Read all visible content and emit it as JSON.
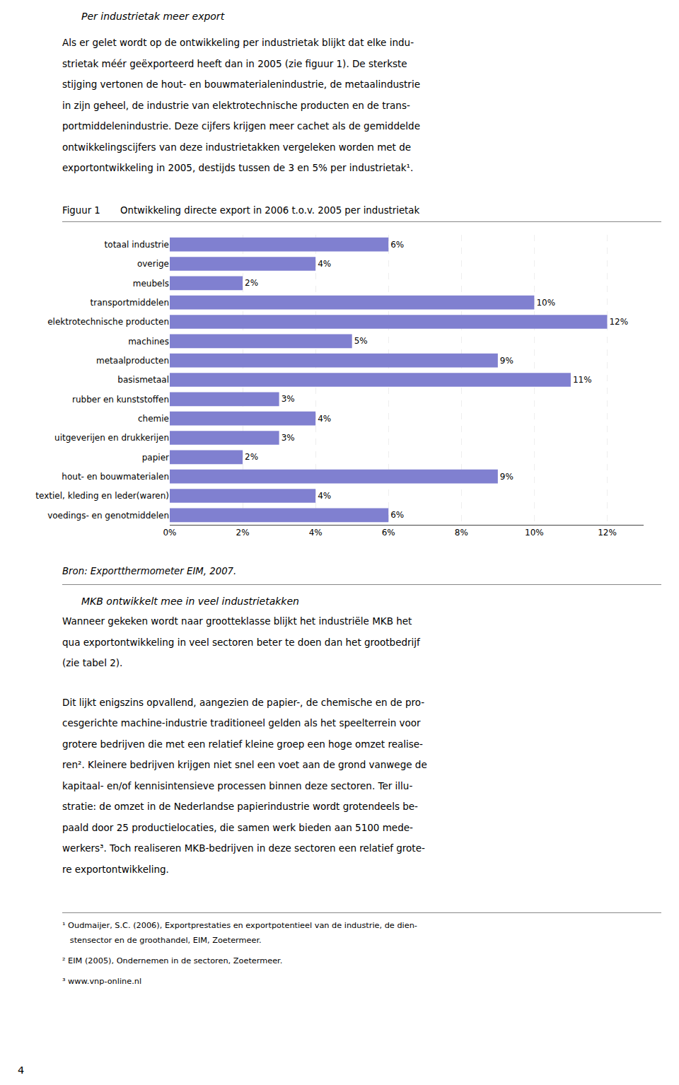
{
  "chart_data": {
    "type": "bar",
    "orientation": "horizontal",
    "title": "Ontwikkeling directe export in 2006 t.o.v. 2005 per industrietak",
    "annotations": [
      "Per industrietak meer export",
      "Als er gelet wordt op de ontwikkeling per industrietak blijkt dat elke indu-",
      "strietak méér geëxporteerd heeft dan in 2005 (zie figuur 1). De sterkste",
      "stijging vertonen de hout- en bouwmaterialenindustrie, de metaalindustrie",
      "in zijn geheel, de industrie van elektrotechnische producten en de trans-",
      "portmiddelenindustrie. Deze cijfers krijgen meer cachet als de gemiddelde",
      "ontwikkelingscijfers van deze industrietakken vergeleken worden met de",
      "exportontwikkeling in 2005, destijds tussen de 3 en 5% per industrietak¹.",
      "Figuur 1",
      "Bron: Exportthermometer EIM, 2007.",
      "MKB ontwikkelt mee in veel industrietakken",
      "Wanneer gekeken wordt naar grootteklasse blijkt het industriële MKB het",
      "qua exportontwikkeling in veel sectoren beter te doen dan het grootbedrijf",
      "(zie tabel 2).",
      "Dit lijkt enigszins opvallend, aangezien de papier-, de chemische en de pro-",
      "cesgerichte machine-industrie traditioneel gelden als het speelterrein voor",
      "grotere bedrijven die met een relatief kleine groep een hoge omzet realise-",
      "ren². Kleinere bedrijven krijgen niet snel een voet aan de grond vanwege de",
      "kapitaal- en/of kennisintensieve processen binnen deze sectoren. Ter illu-",
      "stratie: de omzet in de Nederlandse papierindustrie wordt grotendeels be-",
      "paald door 25 productielocaties, die samen werk bieden aan 5100 mede-",
      "werkers³. Toch realiseren MKB-bedrijven in deze sectoren een relatief grote-",
      "re exportontwikkeling.",
      "¹ Oudmaijer, S.C. (2006), Exportprestaties en exportpotentieel van de industrie, de dien-",
      "   stensector en de groothandel, EIM, Zoetermeer.",
      "² EIM (2005), Ondernemen in de sectoren, Zoetermeer.",
      "³ www.vnp-online.nl",
      "4"
    ],
    "categories": [
      "voedings- en genotmiddelen",
      "textiel, kleding en leder(waren)",
      "hout- en bouwmaterialen",
      "papier",
      "uitgeverijen en drukkerijen",
      "chemie",
      "rubber en kunststoffen",
      "basismetaal",
      "metaalproducten",
      "machines",
      "elektrotechnische producten",
      "transportmiddelen",
      "meubels",
      "overige",
      "totaal industrie"
    ],
    "values": [
      6,
      4,
      9,
      2,
      3,
      4,
      3,
      11,
      9,
      5,
      12,
      10,
      2,
      4,
      6
    ],
    "value_labels": [
      "6%",
      "4%",
      "9%",
      "2%",
      "3%",
      "4%",
      "3%",
      "11%",
      "9%",
      "5%",
      "12%",
      "10%",
      "2%",
      "4%",
      "6%"
    ],
    "data_labels": true,
    "color": "#8080d0",
    "xlim": [
      0,
      13
    ],
    "xticks": [
      {
        "value": 0,
        "label": "0%"
      },
      {
        "value": 2,
        "label": "2%"
      },
      {
        "value": 4,
        "label": "4%"
      },
      {
        "value": 6,
        "label": "6%"
      },
      {
        "value": 8,
        "label": "8%"
      },
      {
        "value": 10,
        "label": "10%"
      },
      {
        "value": 12,
        "label": "12%"
      }
    ],
    "grid": true
  }
}
